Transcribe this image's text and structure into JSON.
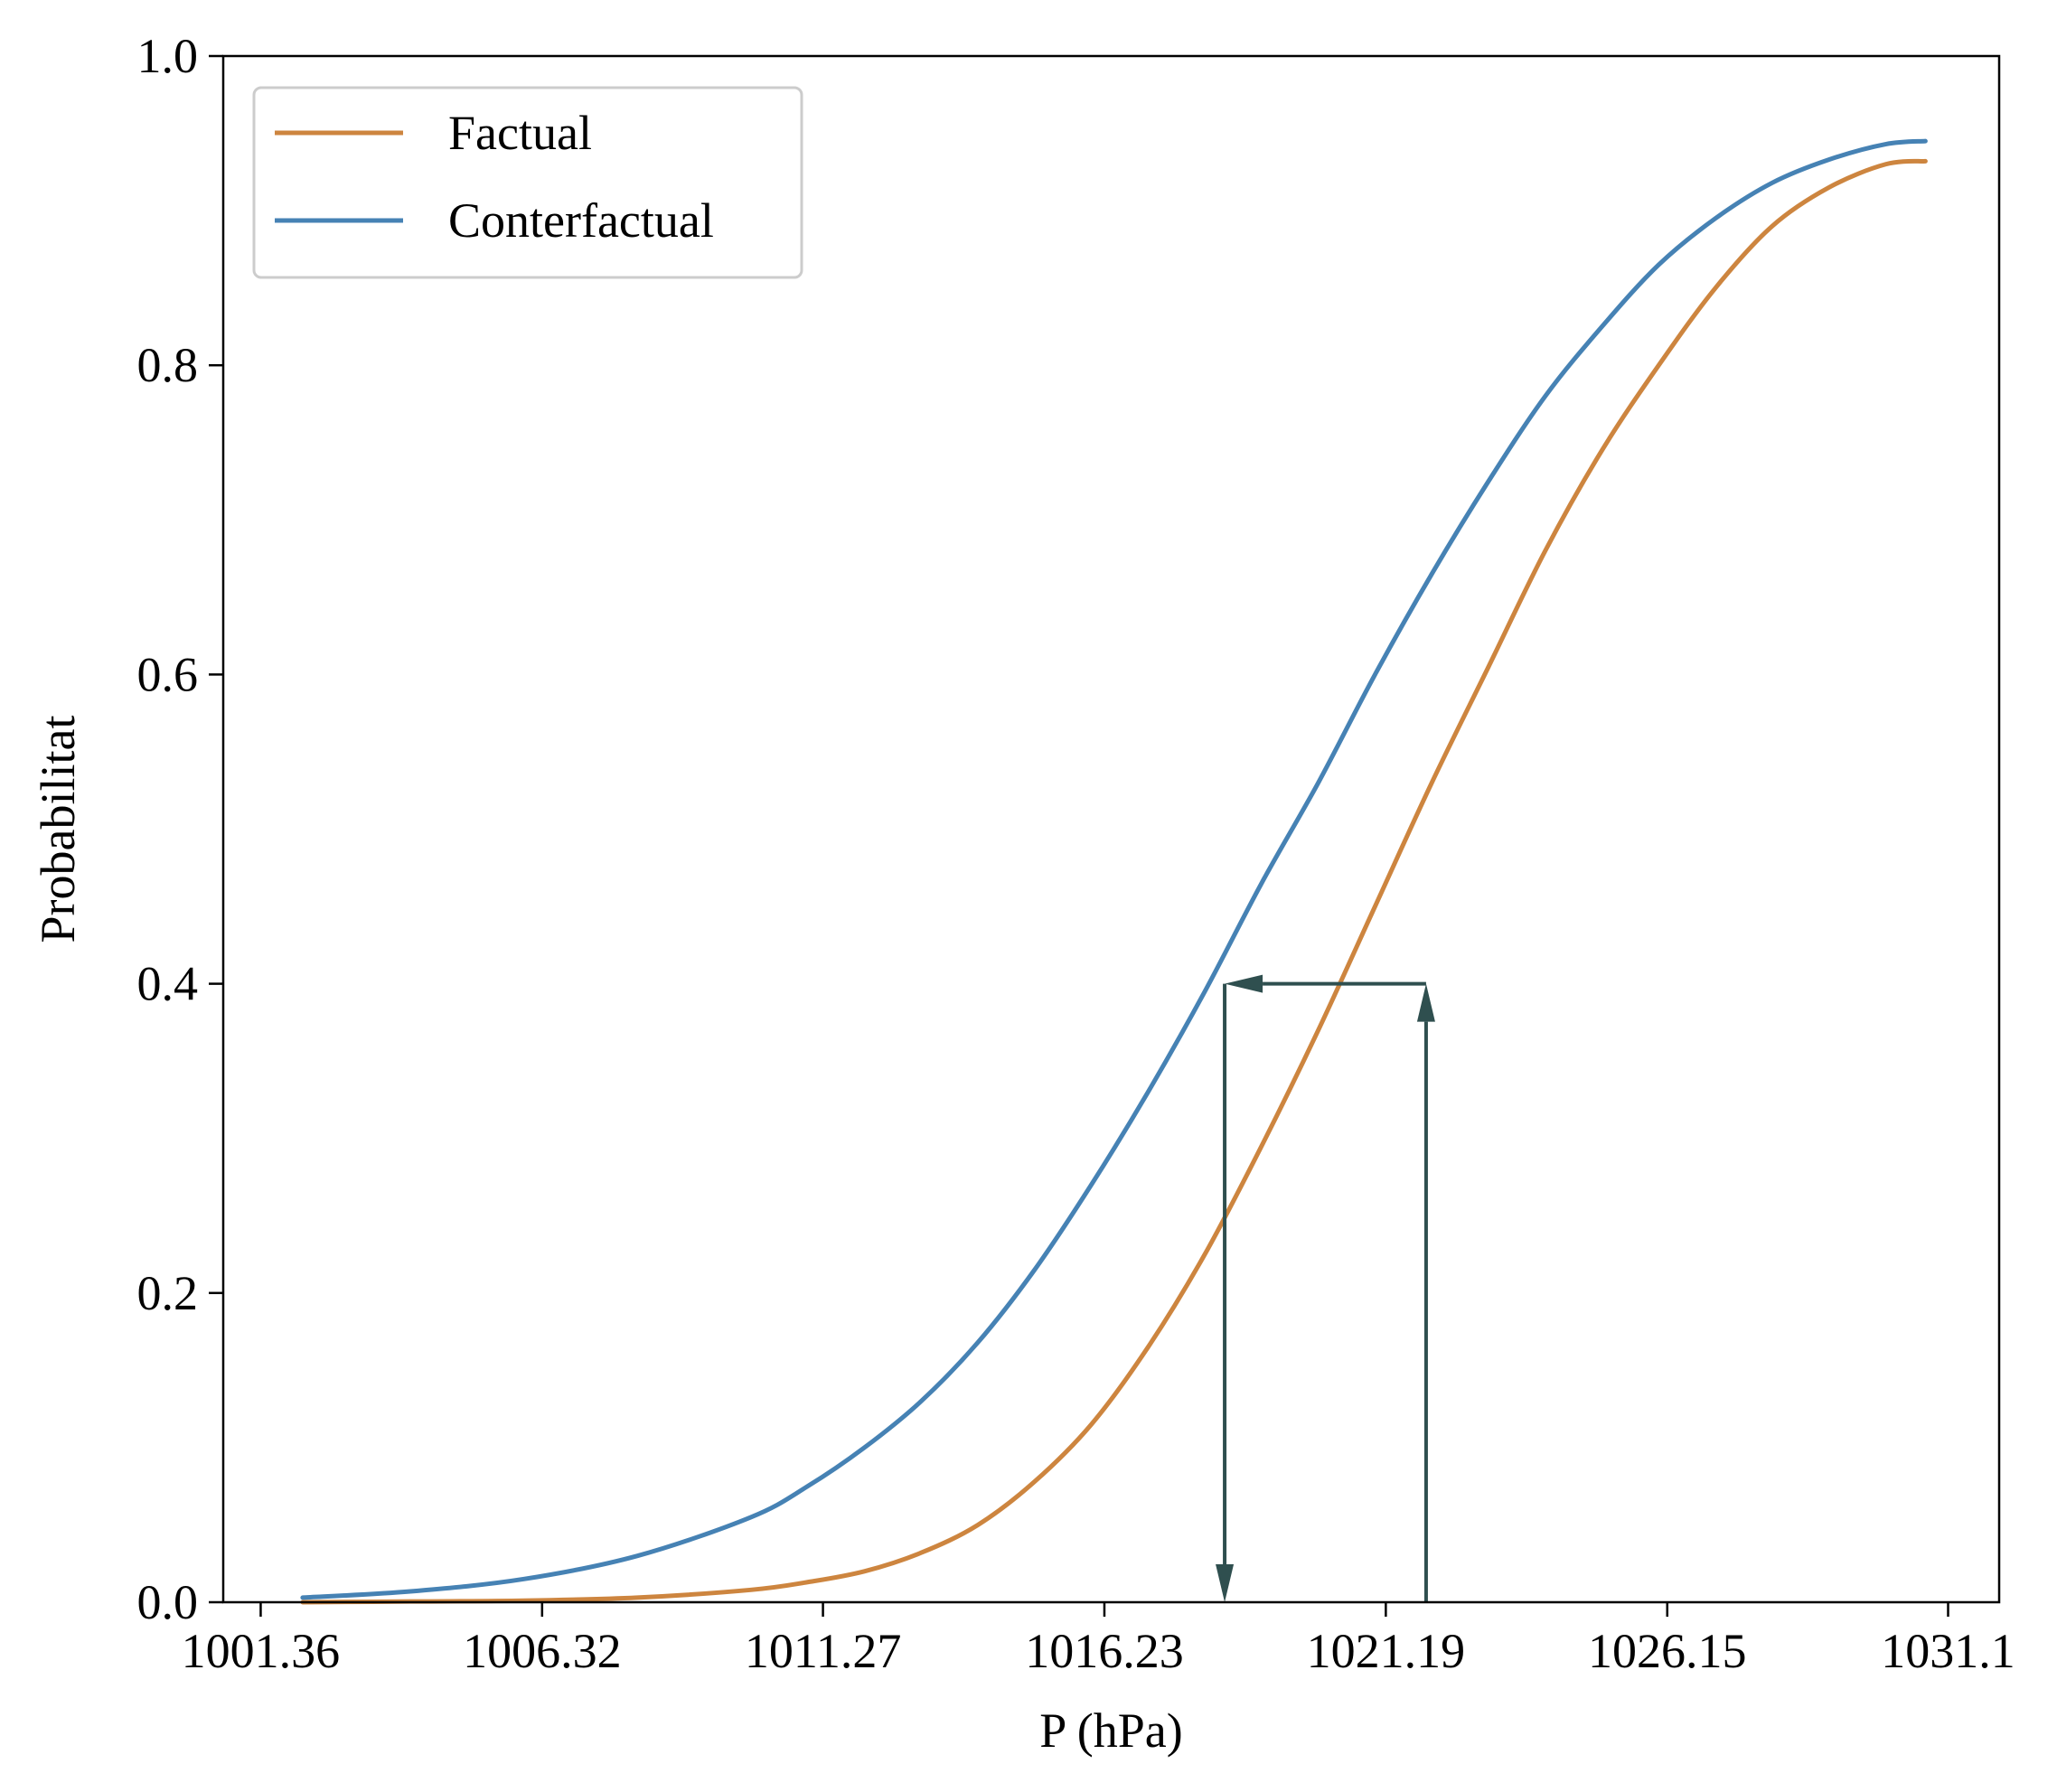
{
  "chart_data": {
    "type": "line",
    "title": "",
    "xlabel": "P (hPa)",
    "ylabel": "Probabilitat",
    "xlim": [
      1000.7,
      1032.0
    ],
    "ylim": [
      0.0,
      1.0
    ],
    "x_ticks": [
      1001.36,
      1006.32,
      1011.27,
      1016.23,
      1021.19,
      1026.15,
      1031.1
    ],
    "x_tick_labels": [
      "1001.36",
      "1006.32",
      "1011.27",
      "1016.23",
      "1021.19",
      "1026.15",
      "1031.1"
    ],
    "y_ticks": [
      0.0,
      0.2,
      0.4,
      0.6,
      0.8,
      1.0
    ],
    "y_tick_labels": [
      "0.0",
      "0.2",
      "0.4",
      "0.6",
      "0.8",
      "1.0"
    ],
    "grid": false,
    "legend_position": "top-left",
    "series": [
      {
        "name": "Factual",
        "color": "#CD853F",
        "x": [
          1002.1,
          1004.0,
          1006.0,
          1008.0,
          1010.0,
          1011.0,
          1012.0,
          1013.0,
          1014.0,
          1015.0,
          1016.0,
          1017.0,
          1018.0,
          1019.0,
          1020.0,
          1021.0,
          1022.0,
          1023.0,
          1024.0,
          1025.0,
          1026.0,
          1027.0,
          1028.0,
          1029.0,
          1030.0,
          1030.7
        ],
        "y": [
          0.0,
          0.0005,
          0.001,
          0.003,
          0.008,
          0.013,
          0.02,
          0.032,
          0.05,
          0.078,
          0.115,
          0.165,
          0.225,
          0.295,
          0.37,
          0.45,
          0.53,
          0.605,
          0.68,
          0.745,
          0.8,
          0.85,
          0.89,
          0.915,
          0.93,
          0.932
        ]
      },
      {
        "name": "Conterfactual",
        "color": "#4682B4",
        "x": [
          1002.1,
          1004.0,
          1006.0,
          1008.0,
          1010.0,
          1011.0,
          1012.0,
          1013.0,
          1014.0,
          1015.0,
          1016.0,
          1017.0,
          1018.0,
          1019.0,
          1020.0,
          1021.0,
          1022.0,
          1023.0,
          1024.0,
          1025.0,
          1026.0,
          1027.0,
          1028.0,
          1029.0,
          1030.0,
          1030.7
        ],
        "y": [
          0.003,
          0.007,
          0.015,
          0.03,
          0.055,
          0.075,
          0.1,
          0.13,
          0.168,
          0.215,
          0.27,
          0.33,
          0.395,
          0.465,
          0.53,
          0.6,
          0.665,
          0.725,
          0.78,
          0.825,
          0.865,
          0.895,
          0.918,
          0.933,
          0.943,
          0.945
        ]
      }
    ],
    "annotations": [
      {
        "type": "arrow",
        "color": "#2F4F4F",
        "from": [
          1021.9,
          0.0
        ],
        "to": [
          1021.9,
          0.4
        ]
      },
      {
        "type": "arrow",
        "color": "#2F4F4F",
        "from": [
          1021.9,
          0.4
        ],
        "to": [
          1018.35,
          0.4
        ]
      },
      {
        "type": "arrow",
        "color": "#2F4F4F",
        "from": [
          1018.35,
          0.4
        ],
        "to": [
          1018.35,
          0.0
        ]
      }
    ]
  }
}
